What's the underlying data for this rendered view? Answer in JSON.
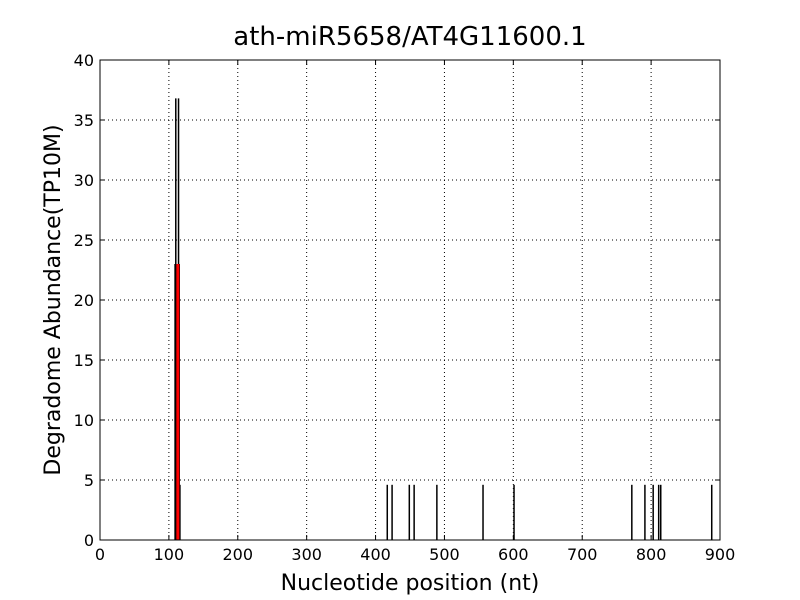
{
  "chart_data": {
    "type": "vlines",
    "title": "ath-miR5658/AT4G11600.1",
    "xlabel": "Nucleotide position (nt)",
    "ylabel": "Degradome Abundance(TP10M)",
    "xlim": [
      0,
      900
    ],
    "ylim": [
      0,
      40
    ],
    "xticks": [
      0,
      100,
      200,
      300,
      400,
      500,
      600,
      700,
      800,
      900
    ],
    "yticks": [
      0,
      5,
      10,
      15,
      20,
      25,
      30,
      35,
      40
    ],
    "grid": true,
    "series": [
      {
        "color": "#000000",
        "x": [
          109,
          110,
          111,
          112,
          114,
          115,
          116,
          417,
          424,
          449,
          456,
          489,
          556,
          601,
          772,
          791,
          803,
          811,
          814,
          888
        ],
        "values": [
          23,
          36.8,
          23,
          4.6,
          36.8,
          23,
          4.6,
          4.6,
          4.6,
          4.6,
          4.6,
          4.6,
          4.6,
          4.6,
          4.6,
          4.6,
          4.6,
          4.6,
          4.6,
          4.6
        ]
      },
      {
        "color": "#ff0000",
        "x": [
          113
        ],
        "values": [
          23
        ]
      }
    ]
  }
}
